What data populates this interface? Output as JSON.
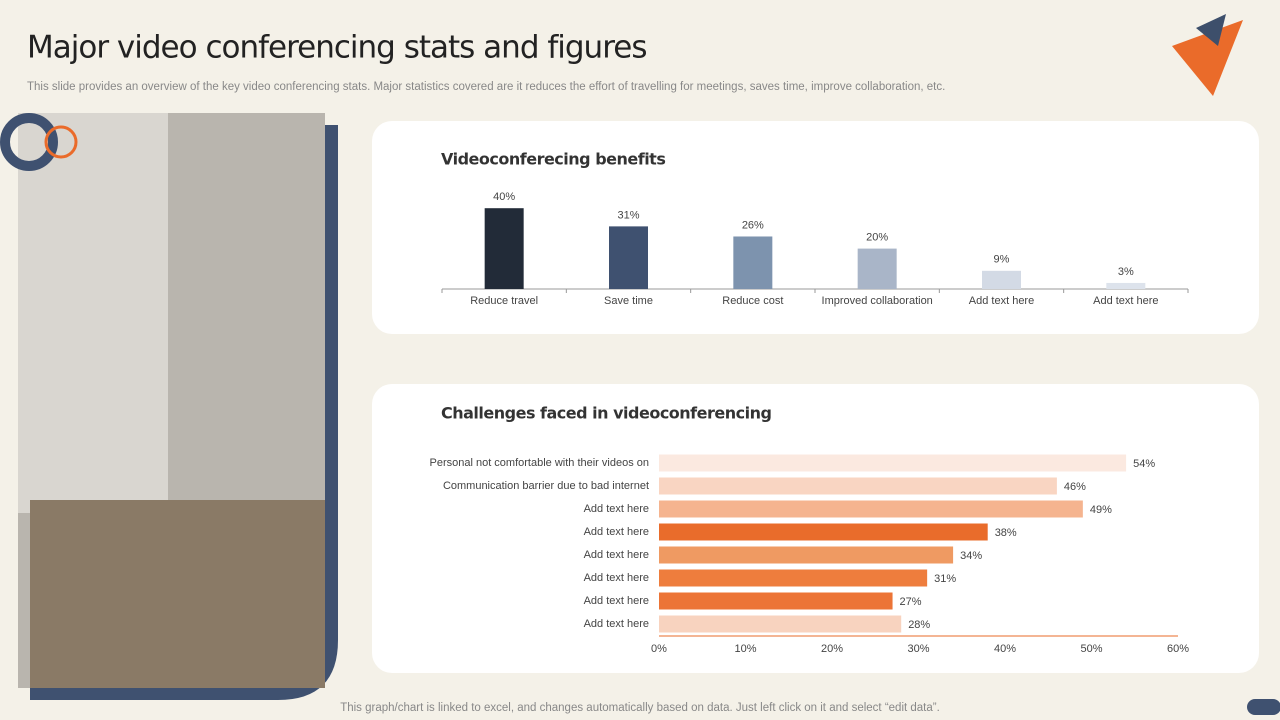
{
  "title": "Major video conferencing stats and figures",
  "subtitle": "This slide provides an overview of the key video conferencing stats. Major statistics covered are it reduces the effort of travelling for meetings, saves time, improve collaboration, etc.",
  "footer": "This graph/chart is linked to excel,  and changes automatically based on data. Just left click on it and select “edit data”.",
  "chart_data": [
    {
      "type": "bar",
      "title": "Videoconferecing  benefits",
      "categories": [
        "Reduce travel",
        "Save time",
        "Reduce cost",
        "Improved collaboration",
        "Add text here",
        "Add text here"
      ],
      "values": [
        40,
        31,
        26,
        20,
        9,
        3
      ],
      "value_labels": [
        "40%",
        "31%",
        "26%",
        "20%",
        "9%",
        "3%"
      ],
      "colors": [
        "#222b38",
        "#3f5170",
        "#7d93ae",
        "#a9b5c8",
        "#d3dae5",
        "#dde3ec"
      ]
    },
    {
      "type": "hbar",
      "title": "Challenges faced in videoconferencing",
      "categories": [
        "Personal not comfortable with their videos on",
        "Communication barrier due to bad internet",
        "Add text here",
        "Add text here",
        "Add text here",
        "Add text here",
        "Add text here",
        "Add text here"
      ],
      "values": [
        54,
        46,
        49,
        38,
        34,
        31,
        27,
        28
      ],
      "value_labels": [
        "54%",
        "46%",
        "49%",
        "38%",
        "34%",
        "31%",
        "27%",
        "28%"
      ],
      "colors": [
        "#fbe9e0",
        "#f9d5c2",
        "#f5b48f",
        "#e96c2b",
        "#ef9a62",
        "#ee7d3d",
        "#ec7436",
        "#f8d3bf"
      ],
      "xlim": [
        0,
        60
      ],
      "xticks": [
        {
          "value": 0,
          "label": "0%"
        },
        {
          "value": 10,
          "label": "10%"
        },
        {
          "value": 20,
          "label": "20%"
        },
        {
          "value": 30,
          "label": "30%"
        },
        {
          "value": 40,
          "label": "40%"
        },
        {
          "value": 50,
          "label": "50%"
        },
        {
          "value": 60,
          "label": "60%"
        }
      ]
    }
  ]
}
